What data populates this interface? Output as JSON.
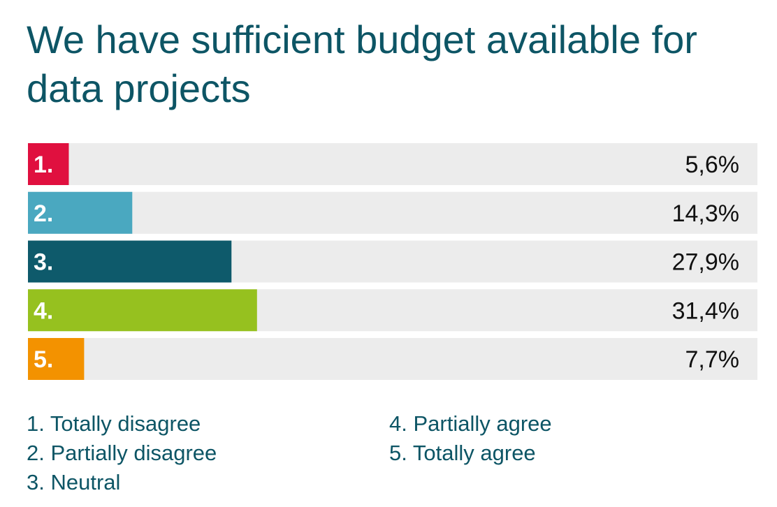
{
  "chart_data": {
    "type": "bar",
    "orientation": "horizontal",
    "title": "We have sufficient budget available for data projects",
    "categories": [
      "1.",
      "2.",
      "3.",
      "4.",
      "5."
    ],
    "values": [
      5.6,
      14.3,
      27.9,
      31.4,
      7.7
    ],
    "value_labels": [
      "5,6%",
      "14,3%",
      "27,9%",
      "31,4%",
      "7,7%"
    ],
    "unit": "%",
    "xlim": [
      0,
      100
    ],
    "grid": false,
    "colors": [
      "#e0103f",
      "#4aa8c0",
      "#0e5a6b",
      "#96c11f",
      "#f39200"
    ],
    "track_color": "#ececec",
    "text_color": "#0d5565",
    "legend": {
      "placement": "bottom",
      "left": [
        "1. Totally disagree",
        "2. Partially disagree",
        "3. Neutral"
      ],
      "right": [
        "4. Partially agree",
        "5. Totally agree"
      ]
    }
  }
}
